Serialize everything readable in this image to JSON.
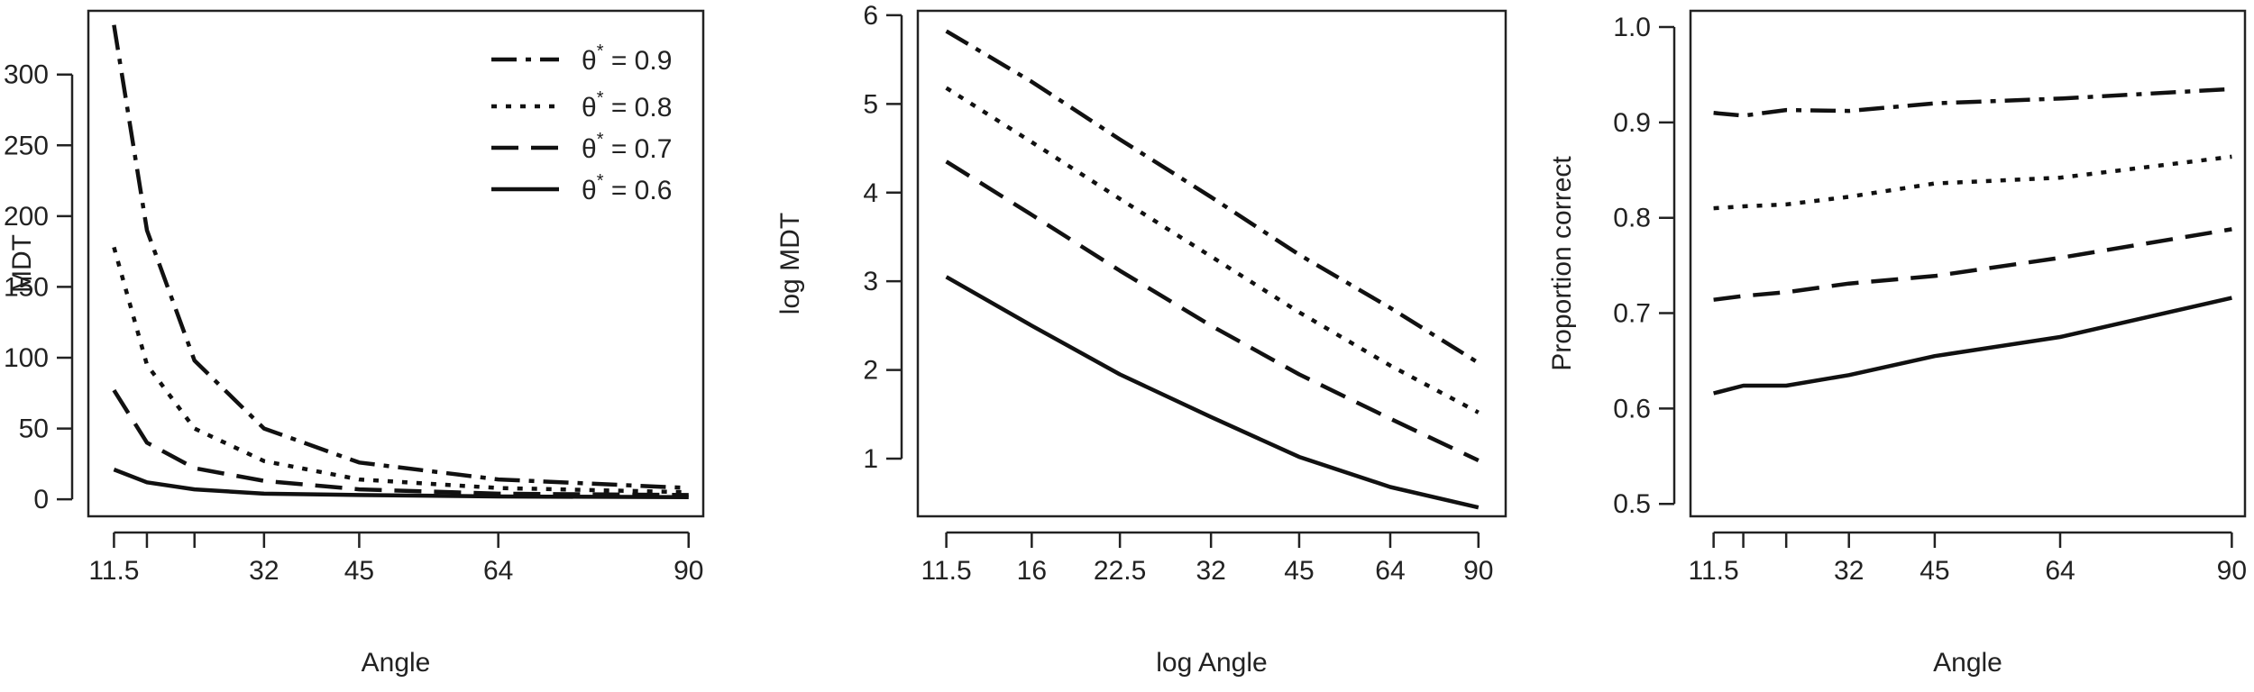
{
  "chart_data": [
    {
      "type": "line",
      "xlabel": "Angle",
      "ylabel": "MDT",
      "xlim": [
        8,
        92
      ],
      "ylim": [
        -12,
        345
      ],
      "xticks": [
        11.5,
        16,
        22.5,
        32,
        45,
        64,
        90
      ],
      "xtick_labels": [
        "11.5",
        "",
        "",
        "32",
        "45",
        "64",
        "90"
      ],
      "yticks": [
        0,
        50,
        100,
        150,
        200,
        250,
        300
      ],
      "ytick_labels": [
        "0",
        "50",
        "100",
        "150",
        "200",
        "250",
        "300"
      ],
      "x": [
        11.5,
        16,
        22.5,
        32,
        45,
        64,
        90
      ],
      "series": [
        {
          "name": "θ* = 0.9",
          "style": "dashdot",
          "values": [
            335,
            190,
            98,
            50,
            26,
            14,
            8
          ]
        },
        {
          "name": "θ* = 0.8",
          "style": "dotted",
          "values": [
            178,
            95,
            50,
            27,
            14,
            8,
            5
          ]
        },
        {
          "name": "θ* = 0.7",
          "style": "dashed",
          "values": [
            77,
            40,
            22,
            13,
            7,
            4,
            3
          ]
        },
        {
          "name": "θ* = 0.6",
          "style": "solid",
          "values": [
            21,
            12,
            7,
            4,
            3,
            2,
            1.5
          ]
        }
      ],
      "legend": {
        "position": "top-right",
        "entries": [
          {
            "symbol": "θ",
            "sup": "*",
            "text": " = 0.9",
            "style": "dashdot"
          },
          {
            "symbol": "θ",
            "sup": "*",
            "text": " = 0.8",
            "style": "dotted"
          },
          {
            "symbol": "θ",
            "sup": "*",
            "text": " = 0.7",
            "style": "dashed"
          },
          {
            "symbol": "θ",
            "sup": "*",
            "text": " = 0.6",
            "style": "solid"
          }
        ]
      }
    },
    {
      "type": "line",
      "xlabel": "log Angle",
      "ylabel": "log MDT",
      "x_scale": "log",
      "xlim": [
        10.3,
        100
      ],
      "ylim": [
        0.35,
        6.05
      ],
      "xticks": [
        11.5,
        16,
        22.5,
        32,
        45,
        64,
        90
      ],
      "xtick_labels": [
        "11.5",
        "16",
        "22.5",
        "32",
        "45",
        "64",
        "90"
      ],
      "yticks": [
        1,
        2,
        3,
        4,
        5,
        6
      ],
      "ytick_labels": [
        "1",
        "2",
        "3",
        "4",
        "5",
        "6"
      ],
      "x": [
        11.5,
        16,
        22.5,
        32,
        45,
        64,
        90
      ],
      "series": [
        {
          "name": "θ* = 0.9",
          "style": "dashdot",
          "values": [
            5.82,
            5.25,
            4.6,
            3.95,
            3.3,
            2.7,
            2.08
          ]
        },
        {
          "name": "θ* = 0.8",
          "style": "dotted",
          "values": [
            5.18,
            4.57,
            3.93,
            3.28,
            2.65,
            2.05,
            1.52
          ]
        },
        {
          "name": "θ* = 0.7",
          "style": "dashed",
          "values": [
            4.35,
            3.75,
            3.12,
            2.5,
            1.95,
            1.45,
            0.98
          ]
        },
        {
          "name": "θ* = 0.6",
          "style": "solid",
          "values": [
            3.05,
            2.5,
            1.95,
            1.47,
            1.02,
            0.68,
            0.45
          ]
        }
      ]
    },
    {
      "type": "line",
      "xlabel": "Angle",
      "ylabel": "Proportion correct",
      "xlim": [
        8,
        92
      ],
      "ylim": [
        0.487,
        1.017
      ],
      "xticks": [
        11.5,
        16,
        22.5,
        32,
        45,
        64,
        90
      ],
      "xtick_labels": [
        "11.5",
        "",
        "",
        "32",
        "45",
        "64",
        "90"
      ],
      "yticks": [
        0.5,
        0.6,
        0.7,
        0.8,
        0.9,
        1.0
      ],
      "ytick_labels": [
        "0.5",
        "0.6",
        "0.7",
        "0.8",
        "0.9",
        "1.0"
      ],
      "x": [
        11.5,
        16,
        22.5,
        32,
        45,
        64,
        90
      ],
      "series": [
        {
          "name": "θ* = 0.9",
          "style": "dashdot",
          "values": [
            0.91,
            0.907,
            0.913,
            0.912,
            0.92,
            0.925,
            0.935
          ]
        },
        {
          "name": "θ* = 0.8",
          "style": "dotted",
          "values": [
            0.81,
            0.812,
            0.814,
            0.822,
            0.836,
            0.842,
            0.864
          ]
        },
        {
          "name": "θ* = 0.7",
          "style": "dashed",
          "values": [
            0.714,
            0.718,
            0.722,
            0.731,
            0.739,
            0.758,
            0.788
          ]
        },
        {
          "name": "θ* = 0.6",
          "style": "solid",
          "values": [
            0.616,
            0.624,
            0.624,
            0.635,
            0.655,
            0.675,
            0.716
          ]
        }
      ]
    }
  ]
}
